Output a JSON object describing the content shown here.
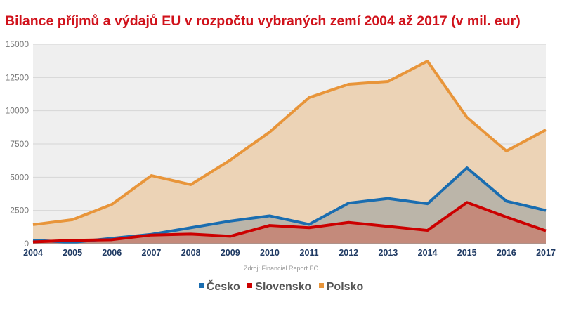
{
  "chart_data": {
    "type": "area",
    "title": "Bilance příjmů a výdajů EU v rozpočtu vybraných zemí 2004 až 2017 (v mil. eur)",
    "source": "Zdroj: Financial Report EC",
    "xlabel": "",
    "ylabel": "",
    "x": [
      "2004",
      "2005",
      "2006",
      "2007",
      "2008",
      "2009",
      "2010",
      "2011",
      "2012",
      "2013",
      "2014",
      "2015",
      "2016",
      "2017"
    ],
    "ylim": [
      0,
      15000
    ],
    "yticks": [
      "0",
      "2500",
      "5000",
      "7500",
      "10000",
      "12500",
      "15000"
    ],
    "grid": true,
    "legend_position": "bottom",
    "series": [
      {
        "name": "Polsko",
        "color": "#e8953a",
        "fill": "#ecd3b6",
        "values": [
          1430,
          1800,
          2960,
          5120,
          4440,
          6290,
          8400,
          10990,
          11990,
          12200,
          13730,
          9500,
          6970,
          8560
        ]
      },
      {
        "name": "Česko",
        "color": "#1a6db0",
        "fill": "#bbb5a9",
        "values": [
          260,
          100,
          400,
          700,
          1200,
          1700,
          2090,
          1450,
          3050,
          3400,
          3000,
          5700,
          3200,
          2500
        ]
      },
      {
        "name": "Slovensko",
        "color": "#cc0000",
        "fill": "#c48a7b",
        "values": [
          130,
          250,
          300,
          650,
          720,
          560,
          1370,
          1200,
          1600,
          1300,
          1000,
          3100,
          2000,
          970
        ]
      }
    ],
    "legend_order": [
      "Česko",
      "Slovensko",
      "Polsko"
    ]
  }
}
